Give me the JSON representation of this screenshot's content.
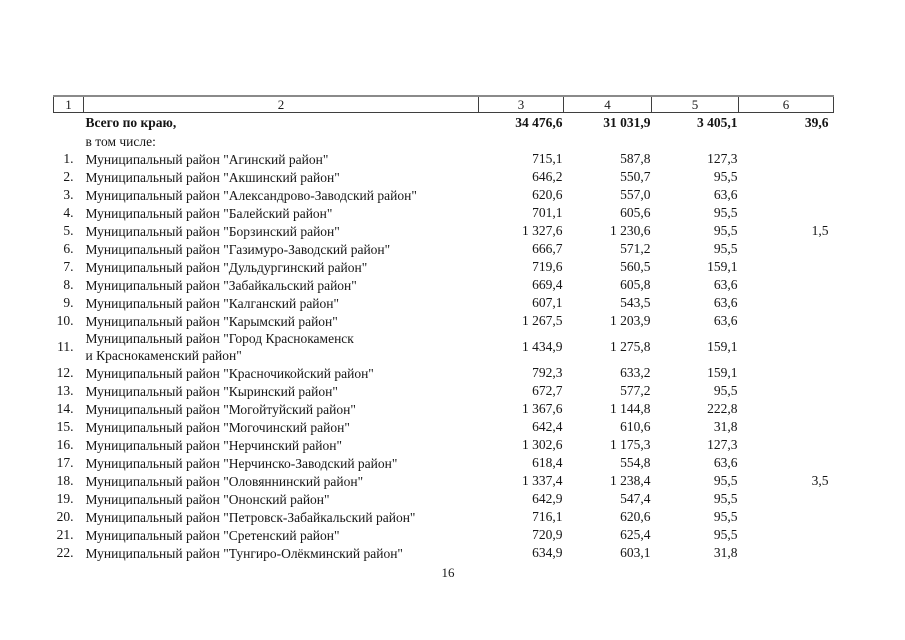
{
  "page": {
    "number": "16"
  },
  "table": {
    "header_cols": [
      "1",
      "2",
      "3",
      "4",
      "5",
      "6"
    ],
    "summary": {
      "label": "Всего по краю,",
      "c3": "34 476,6",
      "c4": "31 031,9",
      "c5": "3 405,1",
      "c6": "39,6"
    },
    "sublabel": "в том числе:",
    "rows": [
      {
        "num": "1.",
        "name": "Муниципальный район \"Агинский район\"",
        "c3": "715,1",
        "c4": "587,8",
        "c5": "127,3",
        "c6": ""
      },
      {
        "num": "2.",
        "name": "Муниципальный район \"Акшинский район\"",
        "c3": "646,2",
        "c4": "550,7",
        "c5": "95,5",
        "c6": ""
      },
      {
        "num": "3.",
        "name": "Муниципальный район \"Александрово-Заводский район\"",
        "c3": "620,6",
        "c4": "557,0",
        "c5": "63,6",
        "c6": ""
      },
      {
        "num": "4.",
        "name": "Муниципальный район \"Балейский район\"",
        "c3": "701,1",
        "c4": "605,6",
        "c5": "95,5",
        "c6": ""
      },
      {
        "num": "5.",
        "name": "Муниципальный район \"Борзинский район\"",
        "c3": "1 327,6",
        "c4": "1 230,6",
        "c5": "95,5",
        "c6": "1,5"
      },
      {
        "num": "6.",
        "name": "Муниципальный район \"Газимуро-Заводский район\"",
        "c3": "666,7",
        "c4": "571,2",
        "c5": "95,5",
        "c6": ""
      },
      {
        "num": "7.",
        "name": "Муниципальный район \"Дульдургинский район\"",
        "c3": "719,6",
        "c4": "560,5",
        "c5": "159,1",
        "c6": ""
      },
      {
        "num": "8.",
        "name": "Муниципальный район \"Забайкальский район\"",
        "c3": "669,4",
        "c4": "605,8",
        "c5": "63,6",
        "c6": ""
      },
      {
        "num": "9.",
        "name": "Муниципальный район \"Калганский район\"",
        "c3": "607,1",
        "c4": "543,5",
        "c5": "63,6",
        "c6": ""
      },
      {
        "num": "10.",
        "name": "Муниципальный район \"Карымский район\"",
        "c3": "1 267,5",
        "c4": "1 203,9",
        "c5": "63,6",
        "c6": ""
      },
      {
        "num": "11.",
        "name": "Муниципальный район \"Город Краснокаменск\nи Краснокаменский район\"",
        "c3": "1 434,9",
        "c4": "1 275,8",
        "c5": "159,1",
        "c6": ""
      },
      {
        "num": "12.",
        "name": "Муниципальный район \"Красночикойский район\"",
        "c3": "792,3",
        "c4": "633,2",
        "c5": "159,1",
        "c6": ""
      },
      {
        "num": "13.",
        "name": "Муниципальный район \"Кыринский район\"",
        "c3": "672,7",
        "c4": "577,2",
        "c5": "95,5",
        "c6": ""
      },
      {
        "num": "14.",
        "name": "Муниципальный район \"Могойтуйский район\"",
        "c3": "1 367,6",
        "c4": "1 144,8",
        "c5": "222,8",
        "c6": ""
      },
      {
        "num": "15.",
        "name": "Муниципальный район \"Могочинский район\"",
        "c3": "642,4",
        "c4": "610,6",
        "c5": "31,8",
        "c6": ""
      },
      {
        "num": "16.",
        "name": "Муниципальный район \"Нерчинский район\"",
        "c3": "1 302,6",
        "c4": "1 175,3",
        "c5": "127,3",
        "c6": ""
      },
      {
        "num": "17.",
        "name": "Муниципальный район \"Нерчинско-Заводский район\"",
        "c3": "618,4",
        "c4": "554,8",
        "c5": "63,6",
        "c6": ""
      },
      {
        "num": "18.",
        "name": "Муниципальный район \"Оловяннинский район\"",
        "c3": "1 337,4",
        "c4": "1 238,4",
        "c5": "95,5",
        "c6": "3,5"
      },
      {
        "num": "19.",
        "name": "Муниципальный район \"Ононский район\"",
        "c3": "642,9",
        "c4": "547,4",
        "c5": "95,5",
        "c6": ""
      },
      {
        "num": "20.",
        "name": "Муниципальный район \"Петровск-Забайкальский район\"",
        "c3": "716,1",
        "c4": "620,6",
        "c5": "95,5",
        "c6": ""
      },
      {
        "num": "21.",
        "name": "Муниципальный район \"Сретенский район\"",
        "c3": "720,9",
        "c4": "625,4",
        "c5": "95,5",
        "c6": ""
      },
      {
        "num": "22.",
        "name": "Муниципальный район \"Тунгиро-Олёкминский район\"",
        "c3": "634,9",
        "c4": "603,1",
        "c5": "31,8",
        "c6": ""
      }
    ]
  }
}
